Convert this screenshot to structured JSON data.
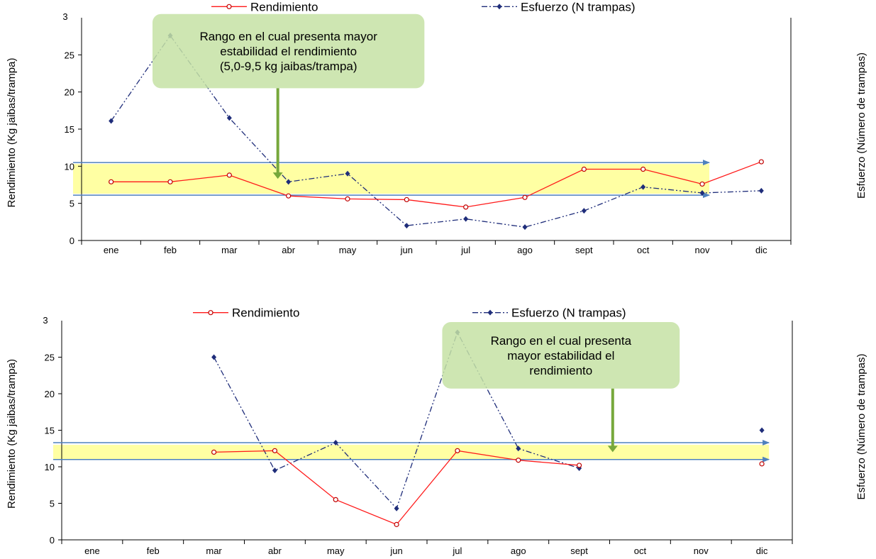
{
  "chart_data": [
    {
      "type": "line",
      "categories": [
        "ene",
        "feb",
        "mar",
        "abr",
        "may",
        "jun",
        "jul",
        "ago",
        "sept",
        "oct",
        "nov",
        "dic"
      ],
      "ylabel": "Rendimiento (Kg  jaibas/trampa)",
      "y2label": "Esfuerzo (Número de trampas)",
      "ylim": [
        0,
        30
      ],
      "yticks": [
        0,
        5,
        10,
        15,
        20,
        25
      ],
      "top_tick_label": "3",
      "band": [
        6.3,
        10.3
      ],
      "arrow_levels": [
        10.5,
        6.1
      ],
      "arrow_end": 10.0,
      "callout": {
        "lines": [
          "Rango en el cual presenta mayor",
          "estabilidad el rendimiento",
          "(5,0-9,5 kg jaibas/trampa)"
        ],
        "x_range": [
          1.2,
          5.8
        ],
        "y_range": [
          20.5,
          30.5
        ],
        "arrow_x": 3.32,
        "arrow_y_range": [
          8.3,
          20.5
        ]
      },
      "legend_y": 31.5,
      "series": [
        {
          "name": "Rendimiento",
          "values": [
            7.9,
            7.9,
            8.8,
            6.0,
            5.6,
            5.5,
            4.5,
            5.8,
            9.6,
            9.6,
            7.6,
            10.6
          ]
        },
        {
          "name": "Esfuerzo (N trampas)",
          "values": [
            16.1,
            27.6,
            16.5,
            7.9,
            9.0,
            2.0,
            2.9,
            1.8,
            4.0,
            7.2,
            6.4,
            6.7
          ]
        }
      ]
    },
    {
      "type": "line",
      "categories": [
        "ene",
        "feb",
        "mar",
        "abr",
        "may",
        "jun",
        "jul",
        "ago",
        "sept",
        "oct",
        "nov",
        "dic"
      ],
      "ylabel": "Rendimiento (Kg  jaibas/trampa)",
      "y2label": "Esfuerzo (Número de trampas)",
      "ylim": [
        0,
        30
      ],
      "yticks": [
        0,
        5,
        10,
        15,
        20,
        25
      ],
      "top_tick_label": "3",
      "band": [
        11.0,
        13.0
      ],
      "arrow_levels": [
        13.3,
        11.0
      ],
      "arrow_end": 11.0,
      "callout": {
        "lines": [
          "Rango en el cual presenta",
          "mayor estabilidad el",
          "rendimiento"
        ],
        "x_range": [
          6.25,
          10.15
        ],
        "y_range": [
          20.7,
          29.8
        ],
        "arrow_x": 9.05,
        "arrow_y_range": [
          12.0,
          20.7
        ]
      },
      "legend_y": 31.1,
      "series": [
        {
          "name": "Rendimiento",
          "values": [
            null,
            null,
            12.0,
            12.2,
            5.5,
            2.1,
            12.2,
            10.9,
            10.2,
            null,
            null,
            10.4
          ]
        },
        {
          "name": "Esfuerzo (N trampas)",
          "values": [
            null,
            null,
            25.0,
            9.5,
            13.3,
            4.3,
            28.4,
            12.5,
            9.8,
            null,
            null,
            15.0
          ]
        }
      ]
    }
  ]
}
